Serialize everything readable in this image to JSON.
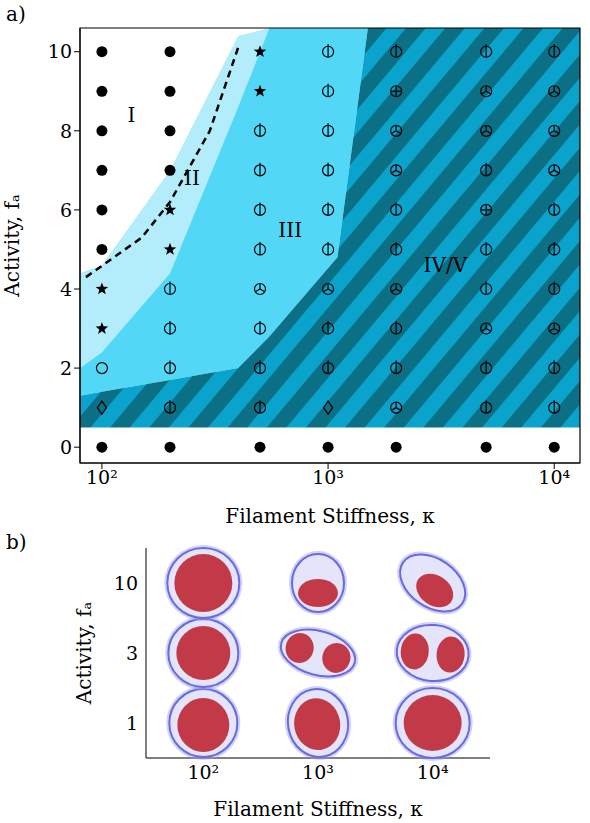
{
  "chart_data": [
    {
      "type": "scatter",
      "panel": "a)",
      "xlabel": "Filament Stiffness, κ",
      "ylabel": "Activity, fₐ",
      "log": "x",
      "xlim": [
        80,
        13000
      ],
      "ylim": [
        -0.4,
        10.6
      ],
      "xticks": [
        {
          "value": 100,
          "label": "10²"
        },
        {
          "value": 1000,
          "label": "10³"
        },
        {
          "value": 10000,
          "label": "10⁴"
        }
      ],
      "yticks": [
        0,
        2,
        4,
        6,
        8,
        10
      ],
      "series": [
        {
          "marker": "filled_circle",
          "x": [
            100,
            100,
            100,
            100,
            100,
            100,
            100,
            200,
            200,
            200,
            200,
            200,
            500,
            1000,
            2000,
            5000,
            10000
          ],
          "values": [
            0,
            5,
            6,
            7,
            8,
            9,
            10,
            0,
            7,
            8,
            9,
            10,
            0,
            0,
            0,
            0,
            0
          ]
        },
        {
          "marker": "diamond",
          "x": [
            100,
            1000
          ],
          "values": [
            1,
            1
          ]
        },
        {
          "marker": "open_circle",
          "x": [
            100
          ],
          "values": [
            2
          ]
        },
        {
          "marker": "star",
          "x": [
            100,
            100,
            200,
            200,
            500,
            500
          ],
          "values": [
            3,
            4,
            5,
            6,
            9,
            10
          ]
        },
        {
          "marker": "phi",
          "x": [
            200,
            200,
            200,
            200,
            500,
            500,
            500,
            500,
            500,
            500,
            500,
            1000,
            1000,
            1000,
            1000,
            1000,
            1000,
            1000,
            1000,
            2000,
            2000,
            2000,
            2000,
            2000,
            5000,
            5000,
            5000,
            5000,
            5000,
            5000,
            10000,
            10000,
            10000,
            10000,
            10000,
            10000
          ],
          "values": [
            1,
            2,
            3,
            4,
            1,
            2,
            3,
            5,
            6,
            7,
            8,
            2,
            3,
            5,
            6,
            7,
            8,
            9,
            10,
            2,
            3,
            5,
            6,
            10,
            1,
            2,
            4,
            5,
            7,
            10,
            1,
            2,
            4,
            5,
            6,
            10
          ]
        },
        {
          "marker": "tri",
          "x": [
            500,
            1000,
            2000,
            2000,
            2000,
            2000,
            5000,
            5000,
            5000,
            10000,
            10000,
            10000,
            10000
          ],
          "values": [
            4,
            4,
            1,
            4,
            7,
            8,
            3,
            8,
            9,
            3,
            7,
            8,
            9
          ]
        },
        {
          "marker": "plus",
          "x": [
            2000,
            5000
          ],
          "values": [
            9,
            6
          ]
        }
      ],
      "boundary": {
        "line_style": "dashed",
        "color": "#000000",
        "x": [
          85,
          150,
          200,
          300,
          400
        ],
        "values": [
          4.3,
          5.3,
          6.2,
          8.0,
          10.1
        ]
      },
      "regions": {
        "x": [
          80,
          100,
          200,
          400,
          550,
          1100,
          1500,
          13000
        ],
        "areas": [
          {
            "label": "I",
            "label_x": 135,
            "label_y": 8.4,
            "color": "#ffffff",
            "lower": [
              4.4,
              4.6,
              7.0,
              10.4,
              10.6,
              10.6,
              10.6,
              10.6
            ],
            "upper": [
              10.6,
              10.6,
              10.6,
              10.6,
              10.6,
              10.6,
              10.6,
              10.6
            ]
          },
          {
            "label": "II",
            "label_x": 250,
            "label_y": 6.8,
            "color": "#b3ecfb",
            "lower": [
              2.0,
              2.4,
              4.4,
              8.6,
              10.6,
              10.6,
              10.6,
              10.6
            ],
            "upper": [
              4.4,
              4.6,
              7.0,
              10.4,
              10.6,
              10.6,
              10.6,
              10.6
            ]
          },
          {
            "label": "III",
            "label_x": 680,
            "label_y": 5.5,
            "color": "#52d8f6",
            "lower": [
              1.3,
              1.4,
              1.7,
              2.0,
              2.8,
              4.8,
              10.6,
              10.6
            ],
            "upper": [
              2.0,
              2.4,
              4.4,
              8.6,
              10.6,
              10.6,
              10.6,
              10.6
            ]
          },
          {
            "label": "IV/V",
            "label_x": 3300,
            "label_y": 4.6,
            "colors": [
              "#0aa3cc",
              "#0b6f85"
            ],
            "lower": [
              0.5,
              0.5,
              0.5,
              0.5,
              0.5,
              0.5,
              0.5,
              0.5
            ],
            "upper": [
              1.3,
              1.4,
              1.7,
              2.0,
              2.8,
              4.8,
              10.6,
              10.6
            ]
          }
        ]
      }
    },
    {
      "type": "image_grid",
      "panel": "b)",
      "xlabel": "Filament Stiffness, κ",
      "ylabel": "Activity, fₐ",
      "categories": [
        "10²",
        "10³",
        "10⁴"
      ],
      "y_categories": [
        1,
        3,
        10
      ]
    }
  ]
}
